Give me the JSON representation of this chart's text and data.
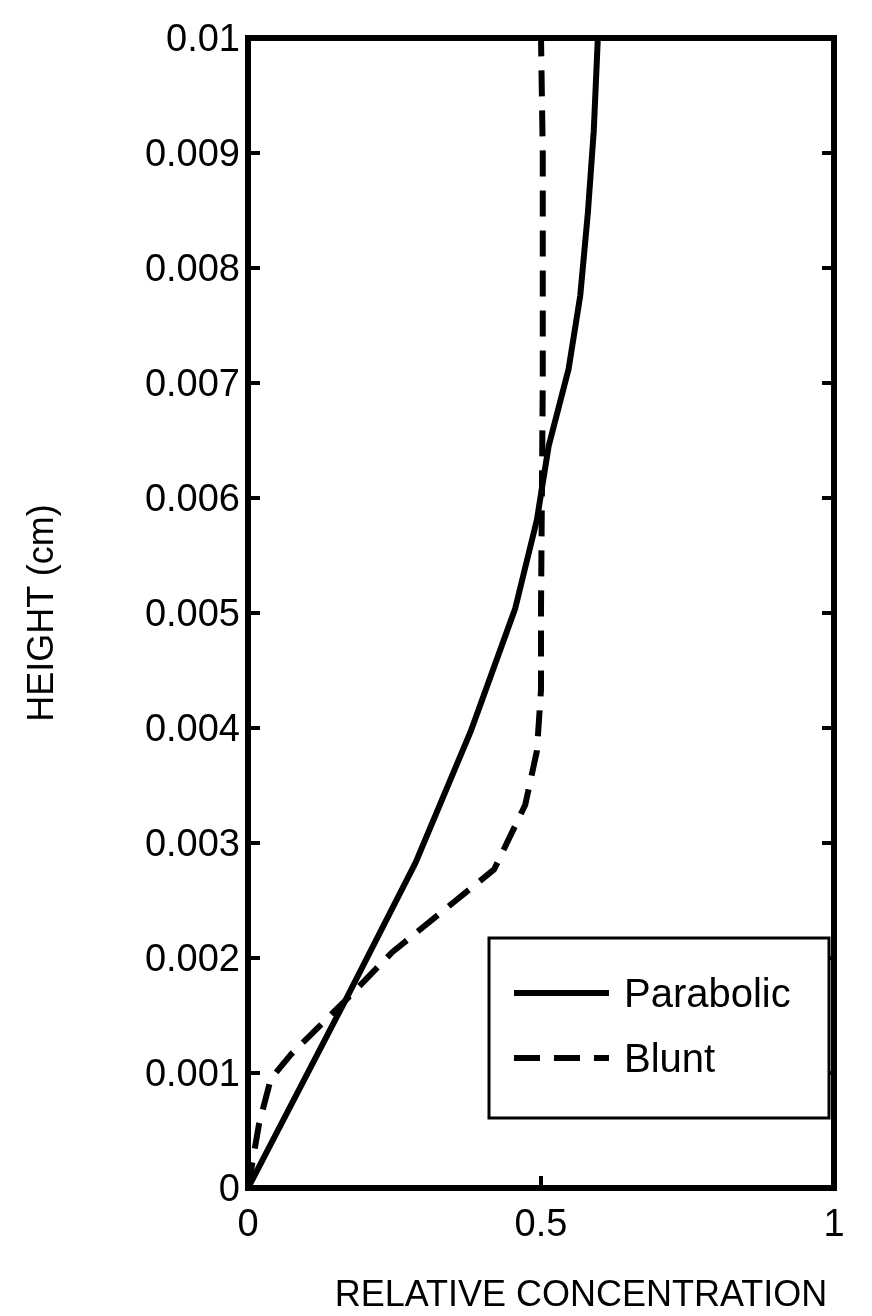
{
  "chart_data": {
    "type": "line",
    "xlabel": "RELATIVE CONCENTRATION",
    "ylabel": "HEIGHT (cm)",
    "xlim": [
      0,
      1
    ],
    "ylim": [
      0,
      0.01
    ],
    "xticks": [
      0,
      0.5,
      1
    ],
    "yticks": [
      0,
      0.001,
      0.002,
      0.003,
      0.004,
      0.005,
      0.006,
      0.007,
      0.008,
      0.009,
      0.01
    ],
    "legend": "bottom right",
    "series": [
      {
        "name": "Parabolic",
        "color": "#000000",
        "line_style": "solid",
        "x": [
          0,
          0.166,
          0.286,
          0.38,
          0.456,
          0.493,
          0.513,
          0.547,
          0.567,
          0.58,
          0.59,
          0.597
        ],
        "values": [
          0,
          0.00163,
          0.00283,
          0.00397,
          0.00504,
          0.00581,
          0.00645,
          0.00712,
          0.00776,
          0.00848,
          0.00919,
          0.01
        ]
      },
      {
        "name": "Blunt",
        "color": "#000000",
        "line_style": "dashed",
        "x": [
          0,
          0.019,
          0.039,
          0.073,
          0.166,
          0.246,
          0.34,
          0.42,
          0.473,
          0.493,
          0.5,
          0.5,
          0.503,
          0.503,
          0.5
        ],
        "values": [
          0,
          0.00056,
          0.00095,
          0.00116,
          0.00163,
          0.00205,
          0.00244,
          0.00277,
          0.00333,
          0.0038,
          0.00433,
          0.00504,
          0.007,
          0.009,
          0.01
        ]
      }
    ]
  }
}
